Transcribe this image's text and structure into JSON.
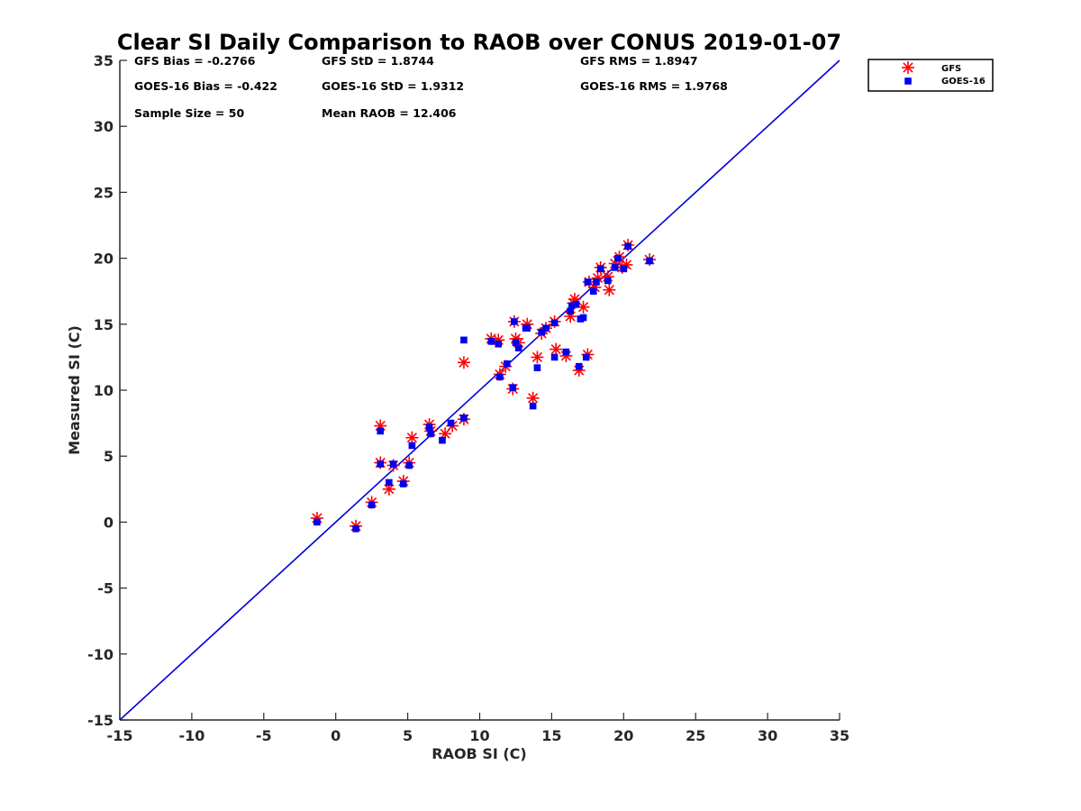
{
  "chart_data": {
    "type": "scatter",
    "title": "Clear SI Daily Comparison to RAOB over CONUS 2019-01-07",
    "xlabel": "RAOB SI (C)",
    "ylabel": "Measured SI (C)",
    "xlim": [
      -15,
      35
    ],
    "ylim": [
      -15,
      35
    ],
    "xticks": [
      "-15",
      "-10",
      "-5",
      "0",
      "5",
      "10",
      "15",
      "20",
      "25",
      "30",
      "35"
    ],
    "yticks": [
      "-15",
      "-10",
      "-5",
      "0",
      "5",
      "10",
      "15",
      "20",
      "25",
      "30",
      "35"
    ],
    "grid": false,
    "legend_position": "top-right",
    "reference_line": {
      "type": "one-to-one",
      "color": "#0000dd"
    },
    "stats": [
      "GFS Bias = -0.2766",
      "GFS StD = 1.8744",
      "GFS RMS = 1.8947",
      "GOES-16 Bias = -0.422",
      "GOES-16 StD = 1.9312",
      "GOES-16 RMS = 1.9768",
      "Sample Size = 50",
      "Mean RAOB = 12.406"
    ],
    "series": [
      {
        "name": "GFS",
        "marker": "asterisk",
        "color": "#ff0000",
        "points": [
          [
            -1.3,
            0.3
          ],
          [
            1.4,
            -0.3
          ],
          [
            2.5,
            1.5
          ],
          [
            3.1,
            7.3
          ],
          [
            3.1,
            4.5
          ],
          [
            3.7,
            2.5
          ],
          [
            4.0,
            4.3
          ],
          [
            4.7,
            3.1
          ],
          [
            5.1,
            4.5
          ],
          [
            5.3,
            6.4
          ],
          [
            6.5,
            7.4
          ],
          [
            6.6,
            6.9
          ],
          [
            7.6,
            6.7
          ],
          [
            8.1,
            7.3
          ],
          [
            8.9,
            7.8
          ],
          [
            8.9,
            12.1
          ],
          [
            10.8,
            13.9
          ],
          [
            11.3,
            13.8
          ],
          [
            11.4,
            11.2
          ],
          [
            11.8,
            11.8
          ],
          [
            12.3,
            10.1
          ],
          [
            12.4,
            15.2
          ],
          [
            12.5,
            13.9
          ],
          [
            12.7,
            13.6
          ],
          [
            13.3,
            15.0
          ],
          [
            13.7,
            9.4
          ],
          [
            14.0,
            12.5
          ],
          [
            14.3,
            14.3
          ],
          [
            14.6,
            14.7
          ],
          [
            15.2,
            15.2
          ],
          [
            15.3,
            13.1
          ],
          [
            16.0,
            12.6
          ],
          [
            16.3,
            15.6
          ],
          [
            16.5,
            16.6
          ],
          [
            16.6,
            16.9
          ],
          [
            16.9,
            11.5
          ],
          [
            17.2,
            16.3
          ],
          [
            17.5,
            12.7
          ],
          [
            17.6,
            18.2
          ],
          [
            18.0,
            17.8
          ],
          [
            18.2,
            18.5
          ],
          [
            18.4,
            19.3
          ],
          [
            18.9,
            18.6
          ],
          [
            19.0,
            17.6
          ],
          [
            19.4,
            19.6
          ],
          [
            19.7,
            20.1
          ],
          [
            19.9,
            19.3
          ],
          [
            20.2,
            19.5
          ],
          [
            20.3,
            21.0
          ],
          [
            21.8,
            19.9
          ]
        ]
      },
      {
        "name": "GOES-16",
        "marker": "square",
        "color": "#0000ee",
        "points": [
          [
            -1.3,
            0.0
          ],
          [
            1.4,
            -0.5
          ],
          [
            2.5,
            1.3
          ],
          [
            3.1,
            6.9
          ],
          [
            3.1,
            4.4
          ],
          [
            3.7,
            3.0
          ],
          [
            4.0,
            4.4
          ],
          [
            4.7,
            2.9
          ],
          [
            5.1,
            4.3
          ],
          [
            5.3,
            5.8
          ],
          [
            6.5,
            7.2
          ],
          [
            6.6,
            6.7
          ],
          [
            7.4,
            6.2
          ],
          [
            8.0,
            7.5
          ],
          [
            8.9,
            7.9
          ],
          [
            8.9,
            13.8
          ],
          [
            10.8,
            13.7
          ],
          [
            11.3,
            13.5
          ],
          [
            11.4,
            11.0
          ],
          [
            11.9,
            12.0
          ],
          [
            12.3,
            10.2
          ],
          [
            12.4,
            15.2
          ],
          [
            12.5,
            13.6
          ],
          [
            12.7,
            13.2
          ],
          [
            13.2,
            14.7
          ],
          [
            13.7,
            8.8
          ],
          [
            14.0,
            11.7
          ],
          [
            14.3,
            14.4
          ],
          [
            14.6,
            14.7
          ],
          [
            15.2,
            15.1
          ],
          [
            15.2,
            12.5
          ],
          [
            16.0,
            12.9
          ],
          [
            16.3,
            16.0
          ],
          [
            16.4,
            16.4
          ],
          [
            16.7,
            16.5
          ],
          [
            16.9,
            11.8
          ],
          [
            17.0,
            15.4
          ],
          [
            17.2,
            15.5
          ],
          [
            17.4,
            12.5
          ],
          [
            17.5,
            18.2
          ],
          [
            17.9,
            17.5
          ],
          [
            18.1,
            18.2
          ],
          [
            18.4,
            19.2
          ],
          [
            18.9,
            18.3
          ],
          [
            19.4,
            19.3
          ],
          [
            19.6,
            20.0
          ],
          [
            20.0,
            19.2
          ],
          [
            20.3,
            20.9
          ],
          [
            21.8,
            19.8
          ],
          [
            13.3,
            14.7
          ]
        ]
      }
    ]
  }
}
